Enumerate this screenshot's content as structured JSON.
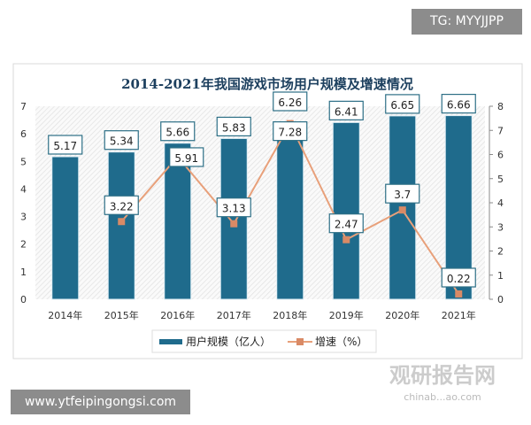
{
  "overlay": {
    "tg": "TG: MYYJJPP",
    "url": "www.ytfeipingongsi.com",
    "watermark": "观研报告网",
    "watermark_sub": "chinab...ao.com"
  },
  "colors": {
    "bar": "#1f6b8c",
    "line": "#e8a07a",
    "marker": "#d98a66"
  },
  "chart_data": {
    "type": "bar+line",
    "title": "2014-2021年我国游戏市场用户规模及增速情况",
    "categories": [
      "2014年",
      "2015年",
      "2016年",
      "2017年",
      "2018年",
      "2019年",
      "2020年",
      "2021年"
    ],
    "series": [
      {
        "name": "用户规模（亿人）",
        "type": "bar",
        "axis": "left",
        "values": [
          5.17,
          5.34,
          5.66,
          5.83,
          6.26,
          6.41,
          6.65,
          6.66
        ]
      },
      {
        "name": "增速（%）",
        "type": "line",
        "axis": "right",
        "values": [
          null,
          3.22,
          5.91,
          3.13,
          7.28,
          2.47,
          3.7,
          0.22
        ]
      }
    ],
    "left_ylim": [
      0,
      7
    ],
    "left_ticks": [
      0,
      1,
      2,
      3,
      4,
      5,
      6,
      7
    ],
    "right_ylim": [
      0,
      8
    ],
    "right_ticks": [
      0,
      1,
      2,
      3,
      4,
      5,
      6,
      7,
      8
    ],
    "legend": "bottom",
    "grid": false
  }
}
